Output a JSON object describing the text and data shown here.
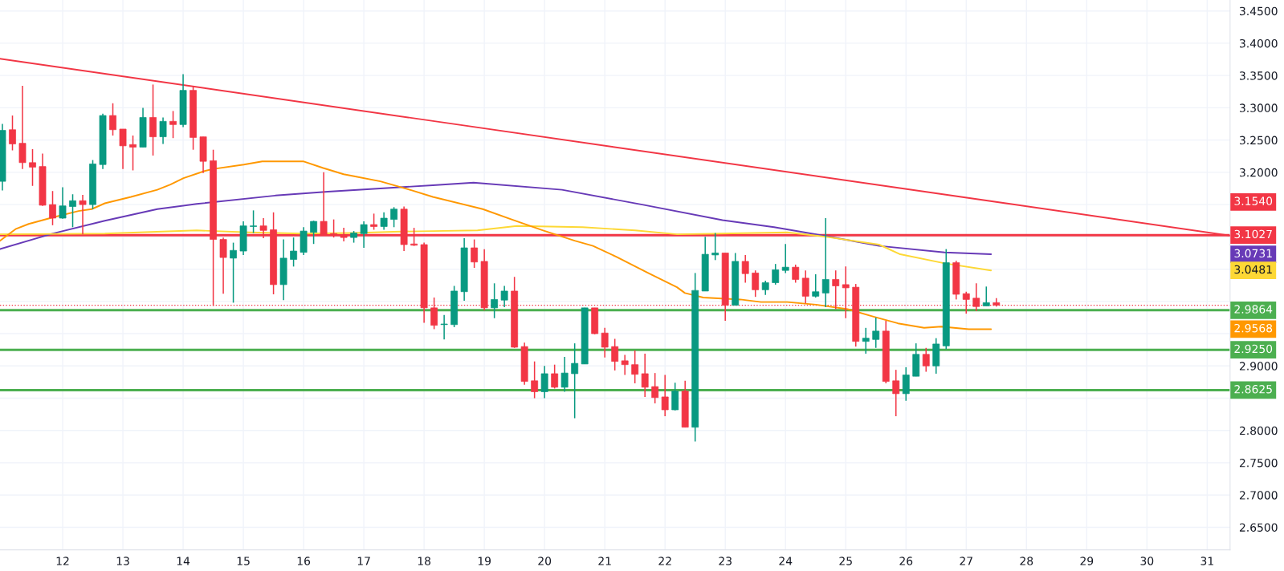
{
  "chart_data": {
    "type": "candlestick",
    "x": [
      11,
      11.1667,
      11.3333,
      11.5,
      11.6667,
      11.8333,
      12,
      12.1667,
      12.3333,
      12.5,
      12.6667,
      12.8333,
      13,
      13.1667,
      13.3333,
      13.5,
      13.6667,
      13.8333,
      14,
      14.1667,
      14.3333,
      14.5,
      14.6667,
      14.8333,
      15,
      15.1667,
      15.3333,
      15.5,
      15.6667,
      15.8333,
      16,
      16.1667,
      16.3333,
      16.5,
      16.6667,
      16.8333,
      17,
      17.1667,
      17.3333,
      17.5,
      17.6667,
      17.8333,
      18,
      18.1667,
      18.3333,
      18.5,
      18.6667,
      18.8333,
      19,
      19.1667,
      19.3333,
      19.5,
      19.6667,
      19.8333,
      20,
      20.1667,
      20.3333,
      20.5,
      20.6667,
      20.8333,
      21,
      21.1667,
      21.3333,
      21.5,
      21.6667,
      21.8333,
      22,
      22.1667,
      22.3333,
      22.5,
      22.6667,
      22.8333,
      23,
      23.1667,
      23.3333,
      23.5,
      23.6667,
      23.8333,
      24,
      24.1667,
      24.3333,
      24.5,
      24.6667,
      24.8333,
      25,
      25.1667,
      25.3333,
      25.5,
      25.6667,
      25.8333,
      26,
      26.1667,
      26.3333,
      26.5,
      26.6667,
      26.8333,
      27,
      27.1667,
      27.3333,
      27.5
    ],
    "ohlc": [
      [
        3.186,
        3.275,
        3.172,
        3.265
      ],
      [
        3.266,
        3.288,
        3.234,
        3.244
      ],
      [
        3.245,
        3.334,
        3.205,
        3.215
      ],
      [
        3.215,
        3.236,
        3.179,
        3.208
      ],
      [
        3.209,
        3.229,
        3.148,
        3.149
      ],
      [
        3.15,
        3.171,
        3.118,
        3.129
      ],
      [
        3.129,
        3.177,
        3.128,
        3.148
      ],
      [
        3.147,
        3.166,
        3.115,
        3.156
      ],
      [
        3.156,
        3.165,
        3.104,
        3.15
      ],
      [
        3.15,
        3.219,
        3.143,
        3.213
      ],
      [
        3.212,
        3.291,
        3.205,
        3.288
      ],
      [
        3.288,
        3.307,
        3.257,
        3.266
      ],
      [
        3.267,
        3.267,
        3.205,
        3.241
      ],
      [
        3.243,
        3.257,
        3.203,
        3.239
      ],
      [
        3.239,
        3.3,
        3.239,
        3.285
      ],
      [
        3.285,
        3.336,
        3.226,
        3.255
      ],
      [
        3.255,
        3.285,
        3.244,
        3.279
      ],
      [
        3.279,
        3.295,
        3.253,
        3.274
      ],
      [
        3.274,
        3.352,
        3.27,
        3.327
      ],
      [
        3.327,
        3.334,
        3.235,
        3.254
      ],
      [
        3.255,
        3.255,
        3.199,
        3.217
      ],
      [
        3.218,
        3.235,
        2.993,
        3.096
      ],
      [
        3.096,
        3.099,
        3.012,
        3.068
      ],
      [
        3.067,
        3.091,
        2.998,
        3.079
      ],
      [
        3.078,
        3.124,
        3.072,
        3.117
      ],
      [
        3.116,
        3.141,
        3.106,
        3.117
      ],
      [
        3.117,
        3.129,
        3.098,
        3.11
      ],
      [
        3.111,
        3.138,
        3.011,
        3.026
      ],
      [
        3.026,
        3.096,
        3.002,
        3.067
      ],
      [
        3.065,
        3.099,
        3.054,
        3.078
      ],
      [
        3.076,
        3.115,
        3.072,
        3.109
      ],
      [
        3.107,
        3.125,
        3.089,
        3.124
      ],
      [
        3.124,
        3.2,
        3.104,
        3.104
      ],
      [
        3.105,
        3.127,
        3.099,
        3.103
      ],
      [
        3.103,
        3.114,
        3.093,
        3.099
      ],
      [
        3.099,
        3.109,
        3.091,
        3.106
      ],
      [
        3.105,
        3.124,
        3.083,
        3.119
      ],
      [
        3.119,
        3.136,
        3.111,
        3.116
      ],
      [
        3.116,
        3.138,
        3.111,
        3.129
      ],
      [
        3.127,
        3.146,
        3.115,
        3.143
      ],
      [
        3.143,
        3.147,
        3.078,
        3.088
      ],
      [
        3.089,
        3.114,
        3.086,
        3.087
      ],
      [
        3.088,
        3.091,
        2.967,
        2.99
      ],
      [
        2.99,
        3.006,
        2.957,
        2.963
      ],
      [
        2.964,
        2.979,
        2.941,
        2.965
      ],
      [
        2.964,
        3.024,
        2.96,
        3.016
      ],
      [
        3.015,
        3.098,
        3.001,
        3.083
      ],
      [
        3.083,
        3.096,
        3.052,
        3.061
      ],
      [
        3.062,
        3.081,
        2.986,
        2.99
      ],
      [
        2.99,
        3.028,
        2.974,
        3.003
      ],
      [
        3.002,
        3.024,
        2.991,
        3.016
      ],
      [
        3.016,
        3.038,
        2.928,
        2.929
      ],
      [
        2.93,
        2.936,
        2.871,
        2.876
      ],
      [
        2.877,
        2.907,
        2.85,
        2.86
      ],
      [
        2.86,
        2.9,
        2.85,
        2.888
      ],
      [
        2.888,
        2.902,
        2.865,
        2.867
      ],
      [
        2.867,
        2.914,
        2.86,
        2.889
      ],
      [
        2.888,
        2.935,
        2.819,
        2.904
      ],
      [
        2.903,
        2.99,
        2.903,
        2.99
      ],
      [
        2.99,
        2.99,
        2.949,
        2.95
      ],
      [
        2.951,
        2.959,
        2.913,
        2.929
      ],
      [
        2.93,
        2.942,
        2.893,
        2.907
      ],
      [
        2.908,
        2.917,
        2.886,
        2.902
      ],
      [
        2.902,
        2.924,
        2.873,
        2.887
      ],
      [
        2.888,
        2.919,
        2.852,
        2.867
      ],
      [
        2.868,
        2.889,
        2.842,
        2.851
      ],
      [
        2.852,
        2.886,
        2.822,
        2.832
      ],
      [
        2.832,
        2.874,
        2.831,
        2.861
      ],
      [
        2.861,
        2.877,
        2.805,
        2.805
      ],
      [
        2.805,
        3.044,
        2.783,
        3.017
      ],
      [
        3.016,
        3.1,
        3.016,
        3.073
      ],
      [
        3.072,
        3.106,
        3.064,
        3.075
      ],
      [
        3.075,
        3.075,
        2.97,
        2.994
      ],
      [
        2.994,
        3.075,
        2.994,
        3.062
      ],
      [
        3.062,
        3.072,
        3.029,
        3.043
      ],
      [
        3.044,
        3.048,
        3.007,
        3.018
      ],
      [
        3.018,
        3.032,
        3.01,
        3.029
      ],
      [
        3.029,
        3.058,
        3.026,
        3.049
      ],
      [
        3.048,
        3.089,
        3.044,
        3.053
      ],
      [
        3.053,
        3.057,
        3.029,
        3.034
      ],
      [
        3.036,
        3.048,
        2.997,
        3.008
      ],
      [
        3.008,
        3.042,
        3.006,
        3.015
      ],
      [
        3.013,
        3.129,
        2.991,
        3.034
      ],
      [
        3.034,
        3.048,
        2.988,
        3.024
      ],
      [
        3.026,
        3.054,
        2.974,
        3.021
      ],
      [
        3.022,
        3.027,
        2.93,
        2.938
      ],
      [
        2.938,
        2.959,
        2.919,
        2.943
      ],
      [
        2.941,
        2.975,
        2.928,
        2.954
      ],
      [
        2.954,
        2.97,
        2.873,
        2.876
      ],
      [
        2.877,
        2.894,
        2.822,
        2.857
      ],
      [
        2.857,
        2.898,
        2.846,
        2.886
      ],
      [
        2.884,
        2.935,
        2.884,
        2.918
      ],
      [
        2.918,
        2.928,
        2.891,
        2.9
      ],
      [
        2.9,
        2.943,
        2.888,
        2.934
      ],
      [
        2.931,
        3.081,
        2.926,
        3.06
      ],
      [
        3.06,
        3.063,
        3.003,
        3.011
      ],
      [
        3.012,
        3.015,
        2.981,
        3.003
      ],
      [
        3.005,
        3.028,
        2.985,
        2.992
      ],
      [
        2.993,
        3.023,
        2.993,
        2.998
      ],
      [
        2.998,
        3.005,
        2.992,
        2.994
      ]
    ],
    "series": [
      {
        "type": "line",
        "color": "#f23645",
        "x": [
          10.96,
          31.38
        ],
        "values": [
          3.376,
          3.102
        ]
      },
      {
        "type": "line",
        "color": "#673ab7",
        "x": [
          10.96,
          11.828,
          12.7,
          13.571,
          14.225,
          15.531,
          16.402,
          17.274,
          18.145,
          18.822,
          20.289,
          21.621,
          22.954,
          23.81,
          24.681,
          25.553,
          26.643,
          27.412
        ],
        "values": [
          3.081,
          3.105,
          3.125,
          3.143,
          3.151,
          3.164,
          3.17,
          3.175,
          3.18,
          3.184,
          3.173,
          3.15,
          3.126,
          3.115,
          3.101,
          3.086,
          3.076,
          3.073
        ]
      },
      {
        "type": "line",
        "color": "#fdd835",
        "x": [
          10.96,
          12.7,
          14.225,
          15.095,
          15.967,
          16.838,
          17.492,
          18.145,
          18.887,
          19.541,
          20.63,
          21.502,
          22.198,
          22.939,
          24.028,
          24.681,
          25.553,
          25.904,
          26.643,
          27.412
        ],
        "values": [
          3.104,
          3.105,
          3.11,
          3.107,
          3.105,
          3.106,
          3.108,
          3.109,
          3.11,
          3.117,
          3.115,
          3.11,
          3.104,
          3.105,
          3.107,
          3.1,
          3.088,
          3.073,
          3.059,
          3.048
        ]
      },
      {
        "type": "line",
        "color": "#ff9800",
        "x": [
          10.96,
          11.218,
          11.436,
          11.828,
          12.264,
          12.482,
          12.7,
          13.135,
          13.571,
          13.789,
          14.007,
          14.356,
          14.486,
          15.008,
          15.313,
          15.993,
          16.315,
          16.664,
          16.838,
          17.274,
          17.797,
          18.145,
          18.974,
          19.453,
          19.976,
          20.499,
          20.804,
          21.196,
          21.719,
          22.198,
          22.33,
          22.634,
          23.25,
          23.593,
          24.028,
          24.508,
          25.031,
          25.474,
          25.866,
          26.301,
          26.583,
          27.042,
          27.412
        ],
        "values": [
          3.094,
          3.112,
          3.12,
          3.13,
          3.14,
          3.143,
          3.152,
          3.162,
          3.173,
          3.181,
          3.191,
          3.202,
          3.205,
          3.212,
          3.217,
          3.217,
          3.207,
          3.197,
          3.194,
          3.186,
          3.172,
          3.162,
          3.143,
          3.127,
          3.11,
          3.094,
          3.086,
          3.069,
          3.044,
          3.022,
          3.013,
          3.006,
          3.003,
          2.999,
          2.999,
          2.995,
          2.988,
          2.976,
          2.966,
          2.959,
          2.961,
          2.957,
          2.957
        ]
      }
    ],
    "ref_lines": [
      {
        "axis": "y",
        "value": 3.1027,
        "label": "3.1027",
        "color": "#f23645",
        "line_style": "solid"
      },
      {
        "axis": "y",
        "value": 2.9864,
        "label": "2.9864",
        "color": "#4caf50",
        "line_style": "solid"
      },
      {
        "axis": "y",
        "value": 2.925,
        "label": "2.9250",
        "color": "#4caf50",
        "line_style": "solid"
      },
      {
        "axis": "y",
        "value": 2.8625,
        "label": "2.8625",
        "color": "#4caf50",
        "line_style": "solid"
      },
      {
        "axis": "y",
        "value": 2.994,
        "color": "#f23645",
        "line_style": "dotted"
      }
    ],
    "annotations": [
      "3.1540",
      "3.0731",
      "3.0481",
      "2.9568"
    ],
    "xlim": [
      10.96,
      31.38
    ],
    "ylim": [
      2.615,
      3.467
    ],
    "xticks": [
      12,
      13,
      14,
      15,
      16,
      17,
      18,
      19,
      20,
      21,
      22,
      23,
      24,
      25,
      26,
      27,
      28,
      29,
      30,
      31
    ],
    "yticks": [
      {
        "value": 2.65,
        "label": "2.6500"
      },
      {
        "value": 2.7,
        "label": "2.7000"
      },
      {
        "value": 2.75,
        "label": "2.7500"
      },
      {
        "value": 2.8,
        "label": "2.8000"
      },
      {
        "value": 2.85,
        "label": null
      },
      {
        "value": 2.9,
        "label": "2.9000"
      },
      {
        "value": 2.95,
        "label": null
      },
      {
        "value": 3.0,
        "label": null
      },
      {
        "value": 3.05,
        "label": null
      },
      {
        "value": 3.1,
        "label": null
      },
      {
        "value": 3.15,
        "label": null
      },
      {
        "value": 3.2,
        "label": "3.2000"
      },
      {
        "value": 3.25,
        "label": "3.2500"
      },
      {
        "value": 3.3,
        "label": "3.3000"
      },
      {
        "value": 3.35,
        "label": "3.3500"
      },
      {
        "value": 3.4,
        "label": "3.4000"
      },
      {
        "value": 3.45,
        "label": "3.4500"
      }
    ],
    "grid": true
  }
}
